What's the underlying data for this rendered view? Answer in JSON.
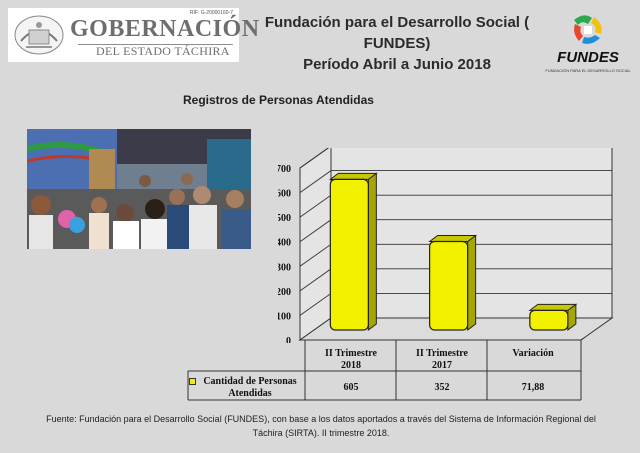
{
  "header": {
    "gobernacion_ref": "RIF: G-20000160-7",
    "gobernacion_name": "GOBERNACIÓN",
    "gobernacion_state": "DEL ESTADO TÁCHIRA",
    "title_line1": "Fundación para el Desarrollo Social ( FUNDES)",
    "title_line2": "Período Abril a Junio 2018",
    "fundes_word": "FUNDES",
    "fundes_tagline": "FUNDACIÓN PARA EL DESARROLLO SOCIAL"
  },
  "subtitle": "Registros de Personas Atendidas",
  "chart_data": {
    "type": "bar",
    "title": "",
    "categories": [
      "II Trimestre 2018",
      "II Trimestre 2017",
      "Variación"
    ],
    "series": [
      {
        "name": "Cantidad de Personas Atendidas",
        "values": [
          605,
          352,
          71.88
        ],
        "display": [
          "605",
          "352",
          "71,88"
        ]
      }
    ],
    "ylim": [
      0,
      700
    ],
    "yticks": [
      "0",
      "100",
      "200",
      "300",
      "400",
      "500",
      "600",
      "700"
    ],
    "grid": true,
    "legend": "table-left",
    "color": "#f2f200"
  },
  "table": {
    "headers": [
      [
        "II Trimestre",
        "2018"
      ],
      [
        "II Trimestre",
        "2017"
      ],
      [
        "Variación",
        ""
      ]
    ],
    "legend_line1": "Cantidad de Personas",
    "legend_line2": "Atendidas"
  },
  "footer": {
    "line1": "Fuente: Fundación para el Desarrollo Social (FUNDES), con base a  los datos aportados a través del Sistema de  Información Regional del",
    "line2": "Táchira (SIRTA). II trimestre 2018."
  }
}
